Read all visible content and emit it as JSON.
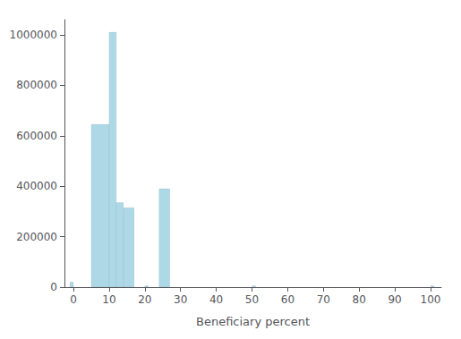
{
  "chart_data": {
    "type": "bar",
    "xlabel": "Beneficiary percent",
    "x": [
      -1,
      5,
      10,
      12,
      14,
      20,
      24,
      50,
      100
    ],
    "widths": [
      1,
      5,
      2,
      2,
      3,
      1,
      3,
      1,
      1
    ],
    "values": [
      20000,
      645000,
      1010000,
      335000,
      315000,
      5000,
      390000,
      5000,
      5000
    ],
    "color": "#add8e6",
    "xlim": [
      -2.5,
      103
    ],
    "xticks": [
      0,
      10,
      20,
      30,
      40,
      50,
      60,
      70,
      80,
      90,
      100
    ],
    "ylim": [
      0,
      1060000
    ],
    "yticks": [
      0,
      200000,
      400000,
      600000,
      800000,
      1000000
    ],
    "grid": false
  }
}
